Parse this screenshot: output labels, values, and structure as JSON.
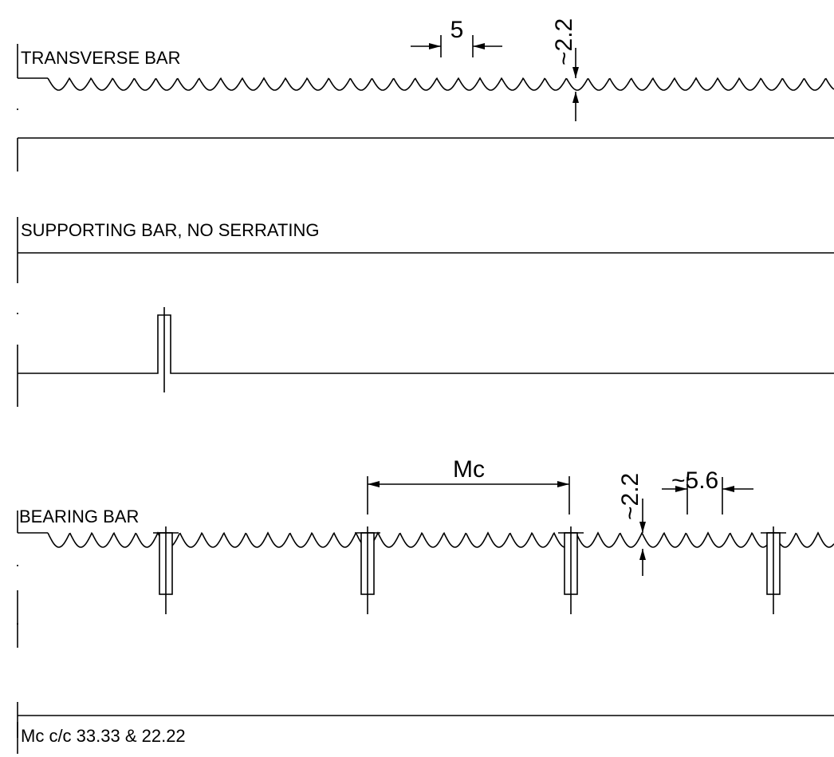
{
  "labels": {
    "transverse": "TRANSVERSE BAR",
    "transverse_pitch": "5",
    "transverse_depth": "~2.2",
    "supporting": "SUPPORTING BAR, NO SERRATING",
    "bearing": "BEARING BAR",
    "bearing_spacing": "Mc",
    "bearing_depth": "~2.2",
    "bearing_pitch": "~5.6",
    "note": "Mc c/c 33.33 & 22.22"
  }
}
